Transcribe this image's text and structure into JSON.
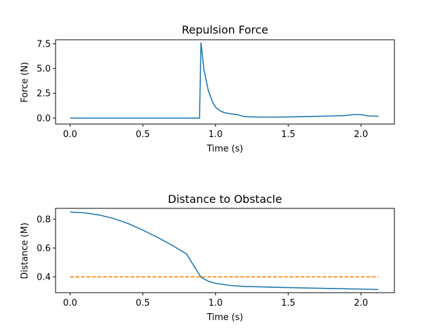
{
  "chart_data": [
    {
      "type": "line",
      "title": "Repulsion Force",
      "xlabel": "Time (s)",
      "ylabel": "Force (N)",
      "xlim": [
        -0.1,
        2.23
      ],
      "ylim": [
        -0.6,
        7.9
      ],
      "xticks": [
        0.0,
        0.5,
        1.0,
        1.5,
        2.0
      ],
      "xtick_labels": [
        "0.0",
        "0.5",
        "1.0",
        "1.5",
        "2.0"
      ],
      "yticks": [
        0.0,
        2.5,
        5.0,
        7.5
      ],
      "ytick_labels": [
        "0.0",
        "2.5",
        "5.0",
        "7.5"
      ],
      "grid": false,
      "series": [
        {
          "color": "#1f77b4",
          "style": "solid",
          "x": [
            0.0,
            0.2,
            0.4,
            0.6,
            0.8,
            0.89,
            0.9,
            0.92,
            0.95,
            0.98,
            1.0,
            1.03,
            1.06,
            1.1,
            1.15,
            1.2,
            1.3,
            1.4,
            1.5,
            1.6,
            1.7,
            1.8,
            1.88,
            1.95,
            2.0,
            2.05,
            2.12
          ],
          "y": [
            0.0,
            0.0,
            0.0,
            0.0,
            0.0,
            0.0,
            7.6,
            4.9,
            2.8,
            1.6,
            1.1,
            0.75,
            0.55,
            0.45,
            0.35,
            0.15,
            0.1,
            0.1,
            0.12,
            0.15,
            0.18,
            0.22,
            0.25,
            0.35,
            0.35,
            0.22,
            0.18
          ]
        }
      ]
    },
    {
      "type": "line",
      "title": "Distance to Obstacle",
      "xlabel": "Time (s)",
      "ylabel": "Distance (M)",
      "xlim": [
        -0.1,
        2.23
      ],
      "ylim": [
        0.29,
        0.876
      ],
      "xticks": [
        0.0,
        0.5,
        1.0,
        1.5,
        2.0
      ],
      "xtick_labels": [
        "0.0",
        "0.5",
        "1.0",
        "1.5",
        "2.0"
      ],
      "yticks": [
        0.4,
        0.6,
        0.8
      ],
      "ytick_labels": [
        "0.4",
        "0.6",
        "0.8"
      ],
      "grid": false,
      "series": [
        {
          "color": "#1f77b4",
          "style": "solid",
          "x": [
            0.0,
            0.1,
            0.2,
            0.3,
            0.4,
            0.5,
            0.6,
            0.7,
            0.8,
            0.9,
            0.95,
            1.0,
            1.1,
            1.2,
            1.4,
            1.6,
            1.8,
            2.0,
            2.12
          ],
          "y": [
            0.85,
            0.845,
            0.83,
            0.805,
            0.77,
            0.725,
            0.675,
            0.62,
            0.56,
            0.397,
            0.37,
            0.355,
            0.34,
            0.333,
            0.328,
            0.323,
            0.319,
            0.315,
            0.312
          ]
        },
        {
          "color": "#ff7f0e",
          "style": "dashed",
          "x": [
            0.0,
            2.12
          ],
          "y": [
            0.4,
            0.4
          ]
        }
      ]
    }
  ]
}
